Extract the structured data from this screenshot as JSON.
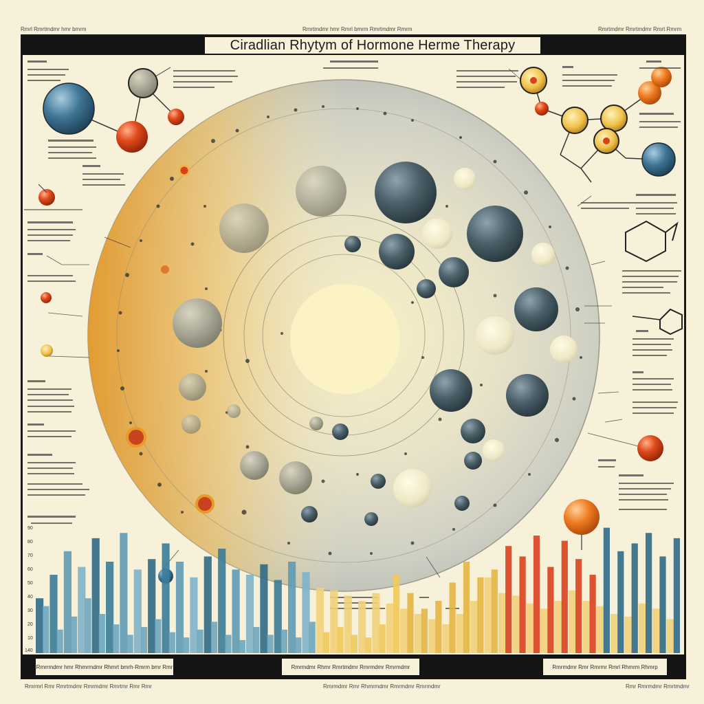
{
  "title": "Ciradlian Rhytym of Hormone Herme Therapy",
  "top_captions": {
    "left": "Rmrl Rmrtmdmr hmr bmrm",
    "center": "Rmrtmdmr hmr Rmrl bmrm Rmrtmdmr Rmrm",
    "right": "Rmrtmdmr Rmrtmdmr Rmrt Rmrm"
  },
  "bottom_captions": {
    "left": "Rmrrmdmr hmr Rhmrmdmr Rhmrt bmrh-Rmrm bmr Rmr",
    "center": "Rmrmdmr Rhmr Rmrtmdmr Rmrmdmr Rmrmdmr",
    "right": "Rmrmdmr Rmr Rmrmr Rmrl Rhmrm Rhmrp"
  },
  "footer_captions": {
    "left": "Rmrmrl Rmr Rmrtmdmr Rmrmdmr Rmrtmr Rmr Rmr",
    "center": "Rmrmdmr Rmr Rhmrmdmr Rmrmdmr Rmrmdmr",
    "right": "Rmr Rmrmdmr Rmrtmdmr"
  },
  "colors": {
    "paper": "#f7f1da",
    "ink": "#141414",
    "orange": "#e79a2a",
    "red": "#d9411e",
    "slate": "#3f5a66",
    "teal": "#2f6a86",
    "yellow": "#f0c95a"
  },
  "chart_data": {
    "type": "bar",
    "series": [
      {
        "values": [
          42,
          60,
          78,
          66,
          88,
          70,
          92,
          64,
          72,
          84,
          70,
          58,
          74,
          80,
          64,
          60,
          68,
          56,
          70,
          62,
          50,
          48,
          44,
          40,
          46,
          38,
          34,
          30,
          26,
          22,
          30,
          40,
          58,
          46,
          44,
          38,
          34,
          40,
          48,
          40,
          36,
          30,
          28,
          38,
          34,
          26
        ]
      },
      {
        "values": [
          36,
          18,
          28,
          42,
          30,
          22,
          14,
          20,
          26,
          16,
          12,
          18,
          24,
          14,
          10,
          20,
          14,
          18,
          12,
          24,
          16,
          20,
          14,
          12,
          22,
          60,
          46,
          34,
          40,
          54,
          70,
          58,
          64,
          82,
          74,
          90,
          66,
          86,
          72,
          60,
          96,
          78,
          84,
          92,
          74,
          88
        ]
      }
    ]
  }
}
